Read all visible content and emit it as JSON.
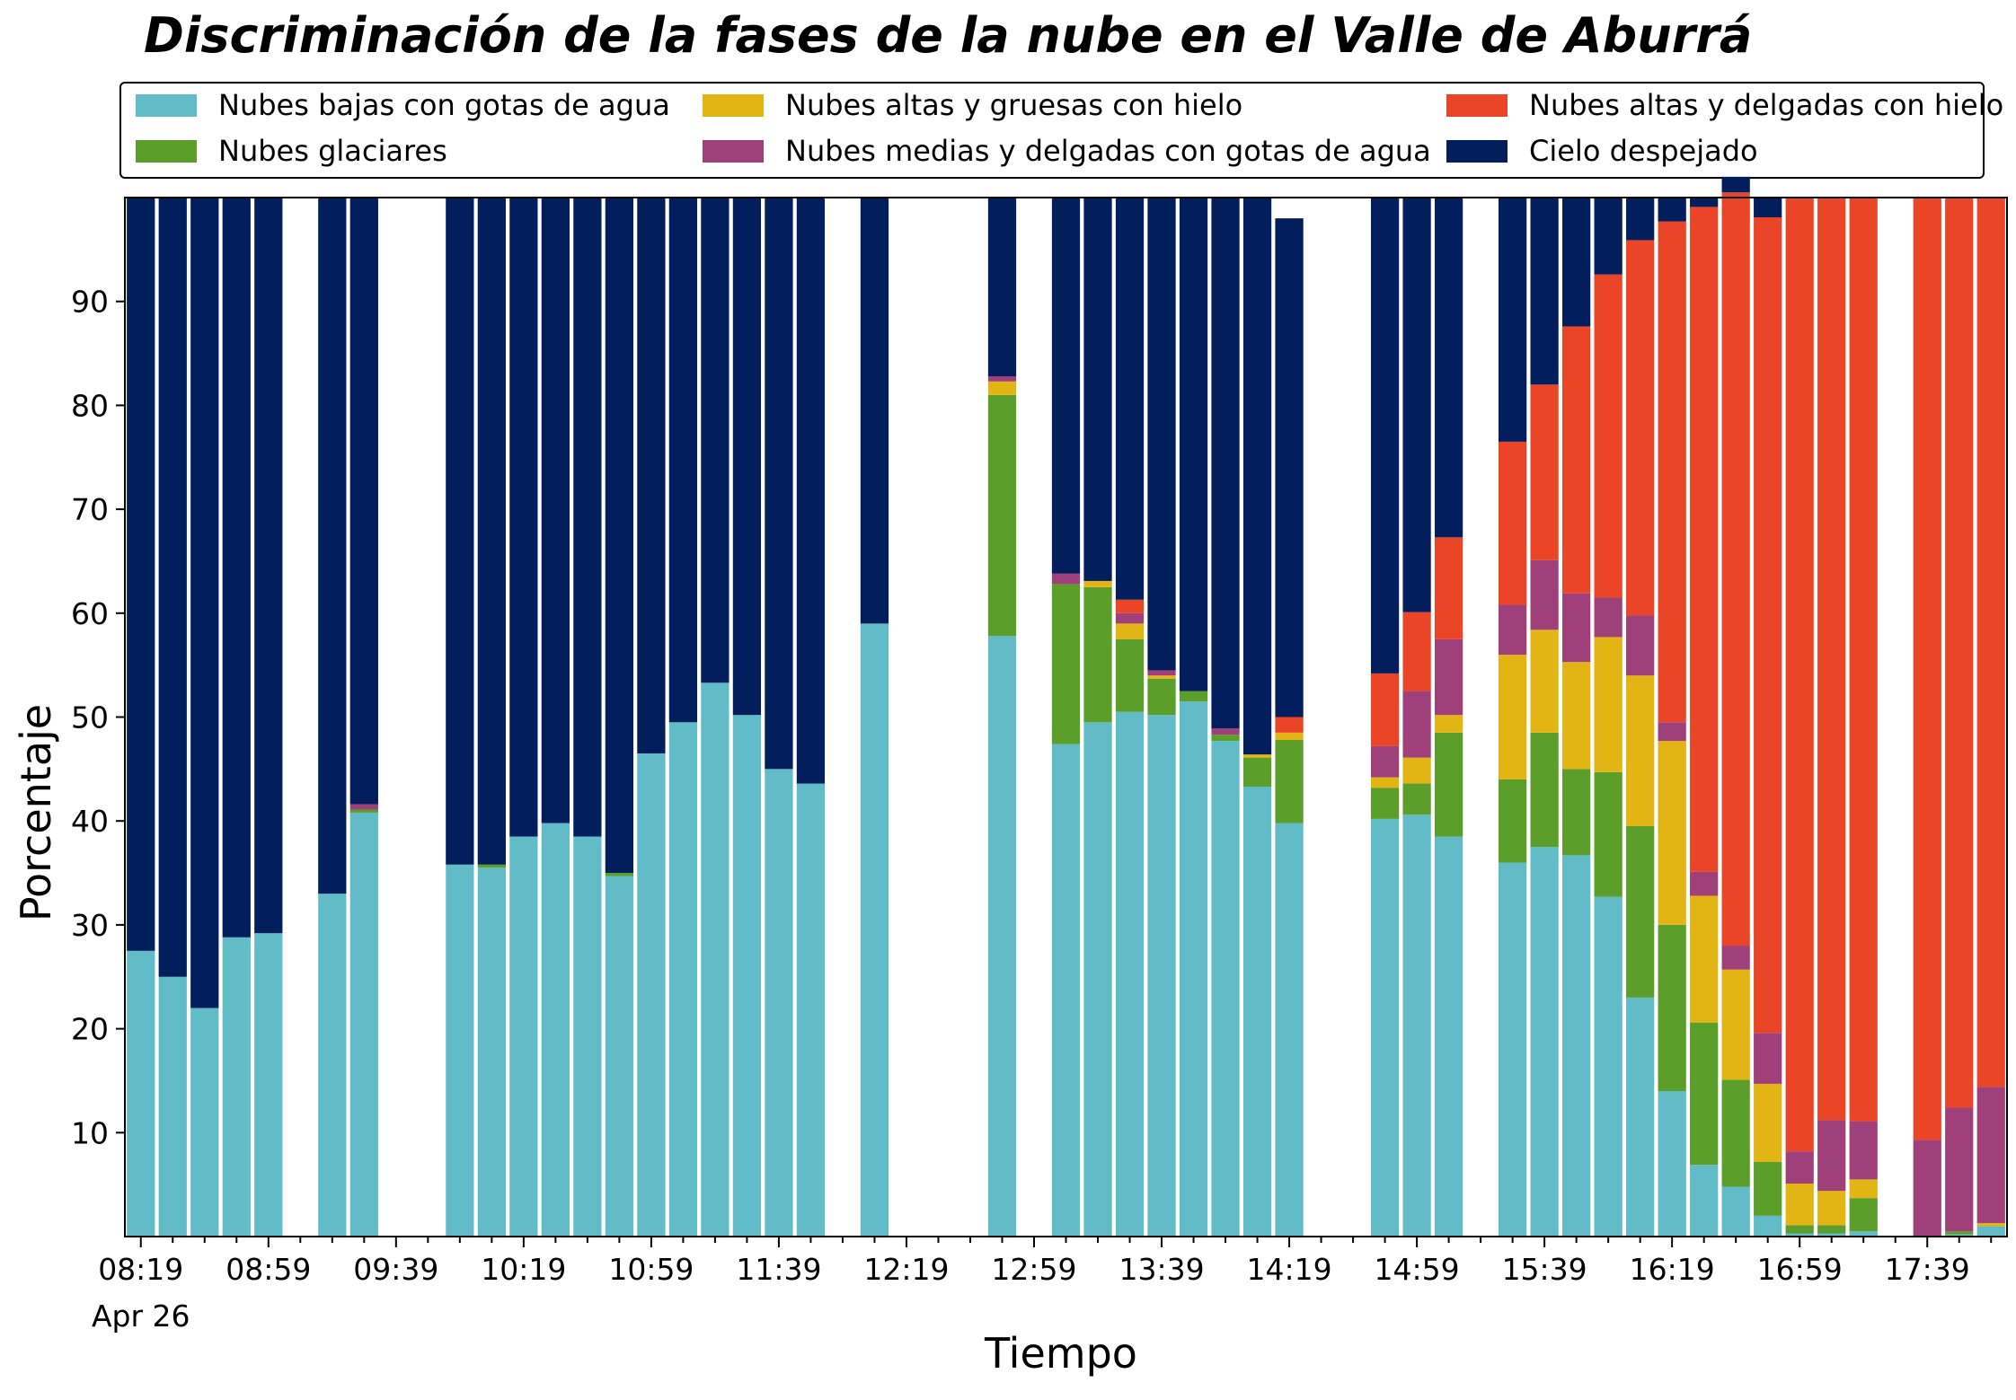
{
  "chart_data": {
    "type": "bar",
    "stacked": true,
    "title": "Discriminación de la fases de la nube en el Valle de Aburrá",
    "xlabel": "Tiempo",
    "ylabel": "Porcentaje",
    "ylim": [
      0,
      100
    ],
    "y_ticks": [
      10,
      20,
      30,
      40,
      50,
      60,
      70,
      80,
      90
    ],
    "x_tick_labels": [
      "08:19",
      "08:59",
      "09:39",
      "10:19",
      "10:59",
      "11:39",
      "12:19",
      "12:59",
      "13:39",
      "14:19",
      "14:59",
      "15:39",
      "16:19",
      "16:59",
      "17:39"
    ],
    "x_date_label": "Apr 26",
    "legend_position": "top",
    "time_start": "08:19",
    "interval_minutes": 10,
    "categories": [
      "08:19",
      "08:29",
      "08:39",
      "08:49",
      "08:59",
      "09:09",
      "09:19",
      "09:29",
      "09:39",
      "09:49",
      "09:59",
      "10:09",
      "10:19",
      "10:29",
      "10:39",
      "10:49",
      "10:59",
      "11:09",
      "11:19",
      "11:29",
      "11:39",
      "11:49",
      "11:59",
      "12:09",
      "12:19",
      "12:29",
      "12:39",
      "12:49",
      "12:59",
      "13:09",
      "13:19",
      "13:29",
      "13:39",
      "13:49",
      "13:59",
      "14:09",
      "14:19",
      "14:29",
      "14:39",
      "14:49",
      "14:59",
      "15:09",
      "15:19",
      "15:29",
      "15:39",
      "15:49",
      "15:59",
      "16:09",
      "16:19",
      "16:29",
      "16:39",
      "16:49",
      "16:59",
      "17:09",
      "17:19",
      "17:29",
      "17:39",
      "17:49",
      "17:59"
    ],
    "series": [
      {
        "name": "Nubes bajas con gotas de agua",
        "color": "#62BCC8",
        "values": [
          27.5,
          25,
          22,
          28.8,
          29.2,
          null,
          33,
          40.8,
          null,
          null,
          35.8,
          35.5,
          38.5,
          39.8,
          38.5,
          34.7,
          46.5,
          49.5,
          53.3,
          50.2,
          45,
          43.6,
          null,
          59,
          null,
          null,
          null,
          57.8,
          null,
          47.4,
          49.5,
          50.5,
          50.2,
          51.5,
          47.7,
          43.3,
          39.8,
          null,
          null,
          40.2,
          40.6,
          38.5,
          null,
          36,
          37.5,
          36.7,
          32.7,
          23,
          14,
          6.9,
          4.8,
          2,
          0.3,
          0.3,
          0.5,
          null,
          0,
          0.2,
          1
        ]
      },
      {
        "name": "Nubes glaciares",
        "color": "#5B9E2A",
        "values": [
          0,
          0,
          0,
          0,
          0,
          null,
          0,
          0.3,
          null,
          null,
          0,
          0.3,
          0,
          0,
          0,
          0.3,
          0,
          0,
          0,
          0,
          0,
          0,
          null,
          0,
          null,
          null,
          null,
          23.2,
          null,
          15.4,
          13,
          7,
          3.5,
          1,
          0.6,
          2.8,
          8,
          null,
          null,
          3,
          3,
          10,
          null,
          8,
          11,
          8.3,
          12,
          16.5,
          16,
          13.7,
          10.3,
          5.2,
          0.8,
          0.8,
          3.2,
          null,
          0,
          0.3,
          0
        ]
      },
      {
        "name": "Nubes altas y gruesas con hielo",
        "color": "#E2B414",
        "values": [
          0,
          0,
          0,
          0,
          0,
          null,
          0,
          0,
          null,
          null,
          0,
          0,
          0,
          0,
          0,
          0,
          0,
          0,
          0,
          0,
          0,
          0,
          null,
          0,
          null,
          null,
          null,
          1.3,
          null,
          0,
          0.6,
          1.5,
          0.3,
          0,
          0,
          0.3,
          0.7,
          null,
          null,
          1,
          2.5,
          1.7,
          null,
          12,
          9.9,
          10.3,
          13,
          14.5,
          17.7,
          12.2,
          10.6,
          7.5,
          4,
          3.3,
          1.8,
          null,
          0,
          0,
          0.3
        ]
      },
      {
        "name": "Nubes medias y delgadas con gotas de agua",
        "color": "#A0407A",
        "values": [
          0,
          0,
          0,
          0,
          0,
          null,
          0,
          0.5,
          null,
          null,
          0,
          0,
          0,
          0,
          0,
          0,
          0,
          0,
          0,
          0,
          0,
          0,
          null,
          0,
          null,
          null,
          null,
          0.5,
          null,
          1,
          0,
          1,
          0.5,
          0,
          0.6,
          0,
          0,
          null,
          null,
          3,
          6.4,
          7.3,
          null,
          4.8,
          6.7,
          6.6,
          3.8,
          5.8,
          1.8,
          2.3,
          2.3,
          4.9,
          3.1,
          6.8,
          5.6,
          null,
          9.3,
          11.9,
          13.1
        ]
      },
      {
        "name": "Nubes altas y delgadas con hielo",
        "color": "#EB4528",
        "values": [
          0,
          0,
          0,
          0,
          0,
          null,
          0,
          0,
          null,
          null,
          0,
          0,
          0,
          0,
          0,
          0,
          0,
          0,
          0,
          0,
          0,
          0,
          null,
          0,
          null,
          null,
          null,
          0,
          null,
          0,
          0,
          1.3,
          0,
          0,
          0,
          0,
          1.5,
          null,
          null,
          7,
          7.6,
          9.8,
          null,
          15.7,
          16.9,
          25.7,
          31.1,
          36.1,
          48.2,
          64,
          72.5,
          78.5,
          91.8,
          88.8,
          88.9,
          null,
          90.7,
          87.6,
          85.6
        ]
      },
      {
        "name": "Cielo despejado",
        "color": "#021E5C",
        "values": [
          72.5,
          75,
          78,
          71.2,
          70.8,
          null,
          67,
          58.4,
          null,
          null,
          64.2,
          64.2,
          61.5,
          60.2,
          61.5,
          65,
          53.5,
          50.5,
          46.7,
          49.8,
          55,
          56.4,
          null,
          41,
          null,
          null,
          null,
          17.2,
          null,
          36.2,
          36.9,
          38.7,
          45.5,
          47.5,
          51.1,
          53.6,
          48,
          null,
          null,
          45.8,
          39.9,
          32.7,
          null,
          23.5,
          18,
          12.4,
          7.4,
          4.1,
          2.3,
          0.9,
          1.5,
          1.9,
          0,
          0,
          0,
          null,
          0,
          0,
          0
        ]
      }
    ]
  }
}
